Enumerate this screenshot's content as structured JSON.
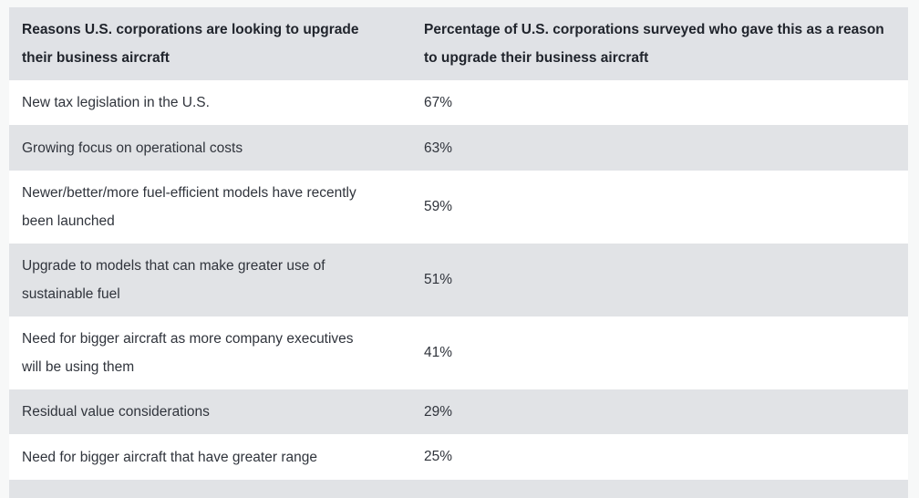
{
  "colors": {
    "page_bg": "#f7f8f8",
    "header_bg": "#e0e2e6",
    "row_bg": "#ffffff",
    "row_alt_bg": "#e1e3e6",
    "header_text": "#20242c",
    "body_text": "#30343c"
  },
  "table": {
    "header": {
      "col1": "Reasons U.S. corporations are looking to upgrade their business aircraft",
      "col2": "Percentage of U.S. corporations surveyed who gave this as a reason to upgrade their business aircraft"
    },
    "rows": [
      {
        "reason": "New tax legislation in the U.S.",
        "percentage": "67%"
      },
      {
        "reason": "Growing focus on operational costs",
        "percentage": "63%"
      },
      {
        "reason": "Newer/better/more fuel-efficient models have recently been launched",
        "percentage": "59%"
      },
      {
        "reason": "Upgrade to models that can make greater use of sustainable fuel",
        "percentage": "51%"
      },
      {
        "reason": "Need for bigger aircraft as more company executives will be using them",
        "percentage": "41%"
      },
      {
        "reason": "Residual value considerations",
        "percentage": "29%"
      },
      {
        "reason": "Need for bigger aircraft that have greater range",
        "percentage": "25%"
      }
    ]
  },
  "chart_data": {
    "type": "table",
    "columns": [
      "Reasons U.S. corporations are looking to upgrade their business aircraft",
      "Percentage of U.S. corporations surveyed who gave this as a reason to upgrade their business aircraft"
    ],
    "categories": [
      "New tax legislation in the U.S.",
      "Growing focus on operational costs",
      "Newer/better/more fuel-efficient models have recently been launched",
      "Upgrade to models that can make greater use of sustainable fuel",
      "Need for bigger aircraft as more company executives will be using them",
      "Residual value considerations",
      "Need for bigger aircraft that have greater range"
    ],
    "values": [
      67,
      63,
      59,
      51,
      41,
      29,
      25
    ],
    "unit": "%"
  }
}
